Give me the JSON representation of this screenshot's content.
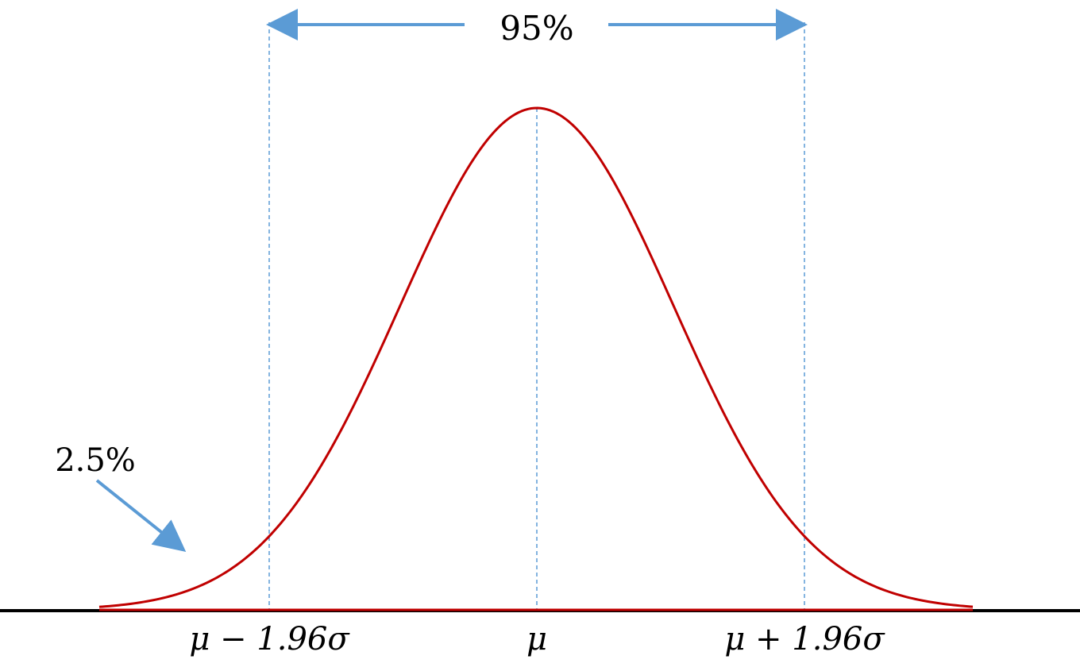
{
  "diagram": {
    "interval_label": "95%",
    "tail_label": "2.5%",
    "x_labels": {
      "left": "μ − 1.96σ",
      "center": "μ",
      "right": "μ + 1.96σ"
    },
    "colors": {
      "curve": "#C00000",
      "guide": "#5B9BD5",
      "baseline": "#000000"
    }
  }
}
